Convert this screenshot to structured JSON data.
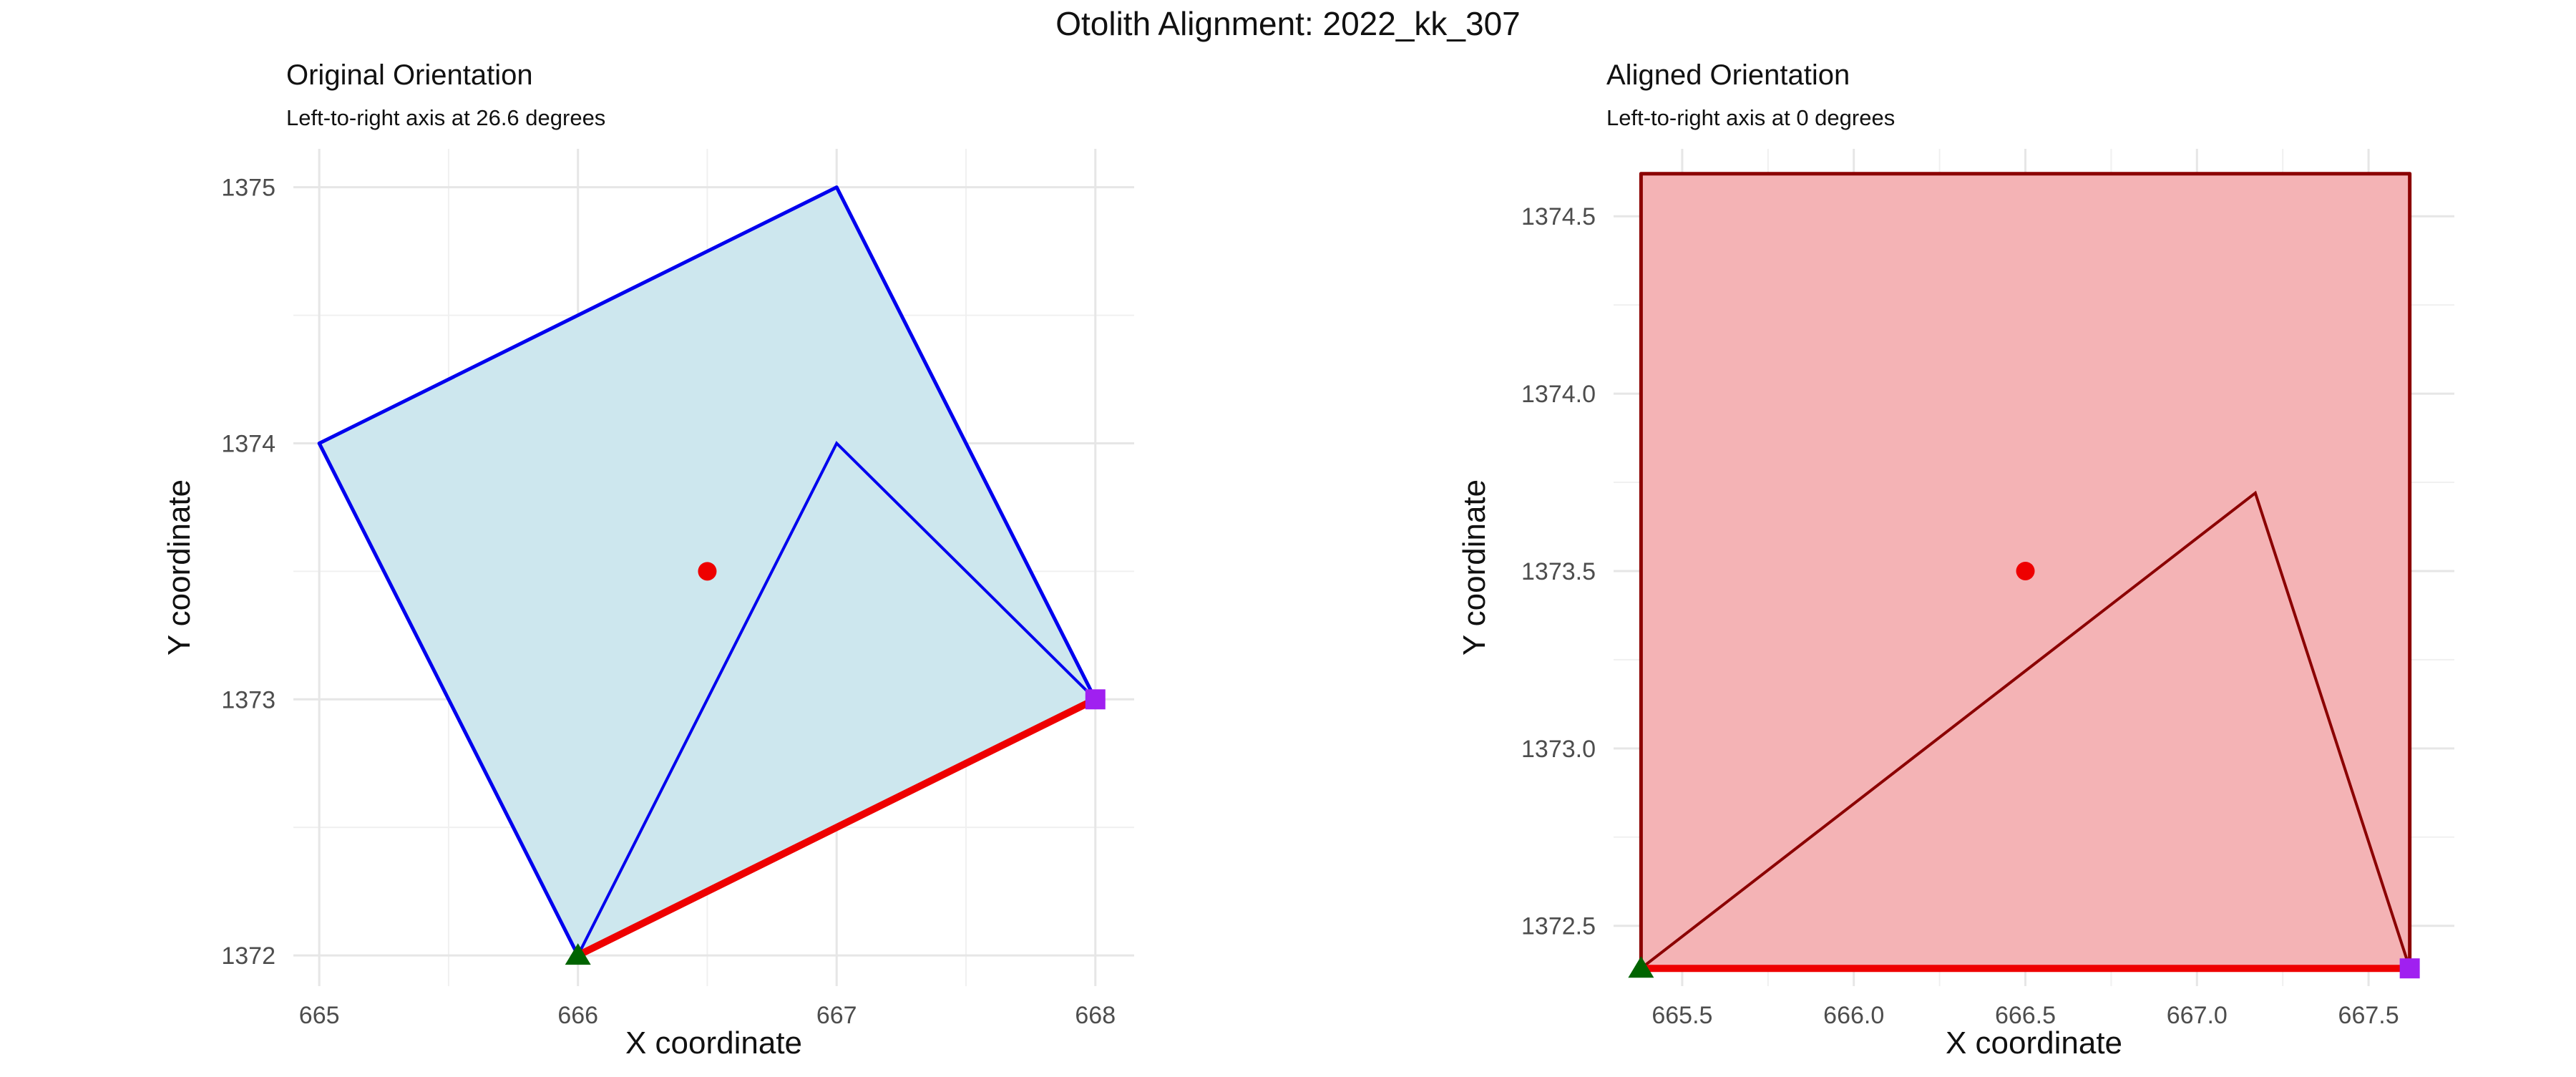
{
  "title": "Otolith Alignment: 2022_kk_307",
  "chart_data": [
    {
      "type": "line",
      "title": "Original Orientation",
      "subtitle": "Left-to-right axis at 26.6 degrees",
      "xlabel": "X coordinate",
      "ylabel": "Y coordinate",
      "xlim": [
        664.9,
        668.15
      ],
      "ylim": [
        1371.88,
        1375.15
      ],
      "x_ticks": [
        665,
        666,
        667,
        668
      ],
      "x_tick_labels": [
        "665",
        "666",
        "667",
        "668"
      ],
      "y_ticks": [
        1372,
        1373,
        1374,
        1375
      ],
      "y_tick_labels": [
        "1372",
        "1373",
        "1374",
        "1375"
      ],
      "grid": true,
      "colors": {
        "fill": "#cde7ee",
        "outline": "#0000ee",
        "axis_line": "#ee0000",
        "centroid": "#ee0000",
        "start": "#006400",
        "end": "#a020f0"
      },
      "outline": {
        "x": [
          665,
          667,
          668,
          666,
          665
        ],
        "y": [
          1374,
          1375,
          1373,
          1372,
          1374
        ]
      },
      "inner_path": {
        "x": [
          666,
          667,
          668
        ],
        "y": [
          1372,
          1374,
          1373
        ]
      },
      "axis_segment": {
        "x": [
          666,
          668
        ],
        "y": [
          1372,
          1373
        ]
      },
      "centroid": {
        "x": 666.5,
        "y": 1373.5
      },
      "start_point": {
        "x": 666,
        "y": 1372
      },
      "end_point": {
        "x": 668,
        "y": 1373
      }
    },
    {
      "type": "line",
      "title": "Aligned Orientation",
      "subtitle": "Left-to-right axis at 0 degrees",
      "xlabel": "X coordinate",
      "ylabel": "Y coordinate",
      "xlim": [
        665.3,
        667.75
      ],
      "ylim": [
        1372.33,
        1374.69
      ],
      "x_ticks": [
        665.5,
        666.0,
        666.5,
        667.0,
        667.5
      ],
      "x_tick_labels": [
        "665.5",
        "666.0",
        "666.5",
        "667.0",
        "667.5"
      ],
      "y_ticks": [
        1372.5,
        1373.0,
        1373.5,
        1374.0,
        1374.5
      ],
      "y_tick_labels": [
        "1372.5",
        "1373.0",
        "1373.5",
        "1374.0",
        "1374.5"
      ],
      "grid": true,
      "colors": {
        "fill": "#f4b3b5",
        "outline": "#8b0000",
        "axis_line": "#ee0000",
        "centroid": "#ee0000",
        "start": "#006400",
        "end": "#a020f0"
      },
      "outline": {
        "x": [
          665.38,
          667.62,
          667.62,
          665.38,
          665.38
        ],
        "y": [
          1374.62,
          1374.62,
          1372.38,
          1372.38,
          1374.62
        ]
      },
      "inner_path": {
        "x": [
          665.38,
          667.17,
          667.62
        ],
        "y": [
          1372.38,
          1373.72,
          1372.38
        ]
      },
      "axis_segment": {
        "x": [
          665.38,
          667.62
        ],
        "y": [
          1372.38,
          1372.38
        ]
      },
      "centroid": {
        "x": 666.5,
        "y": 1373.5
      },
      "start_point": {
        "x": 665.38,
        "y": 1372.38
      },
      "end_point": {
        "x": 667.62,
        "y": 1372.38
      }
    }
  ]
}
